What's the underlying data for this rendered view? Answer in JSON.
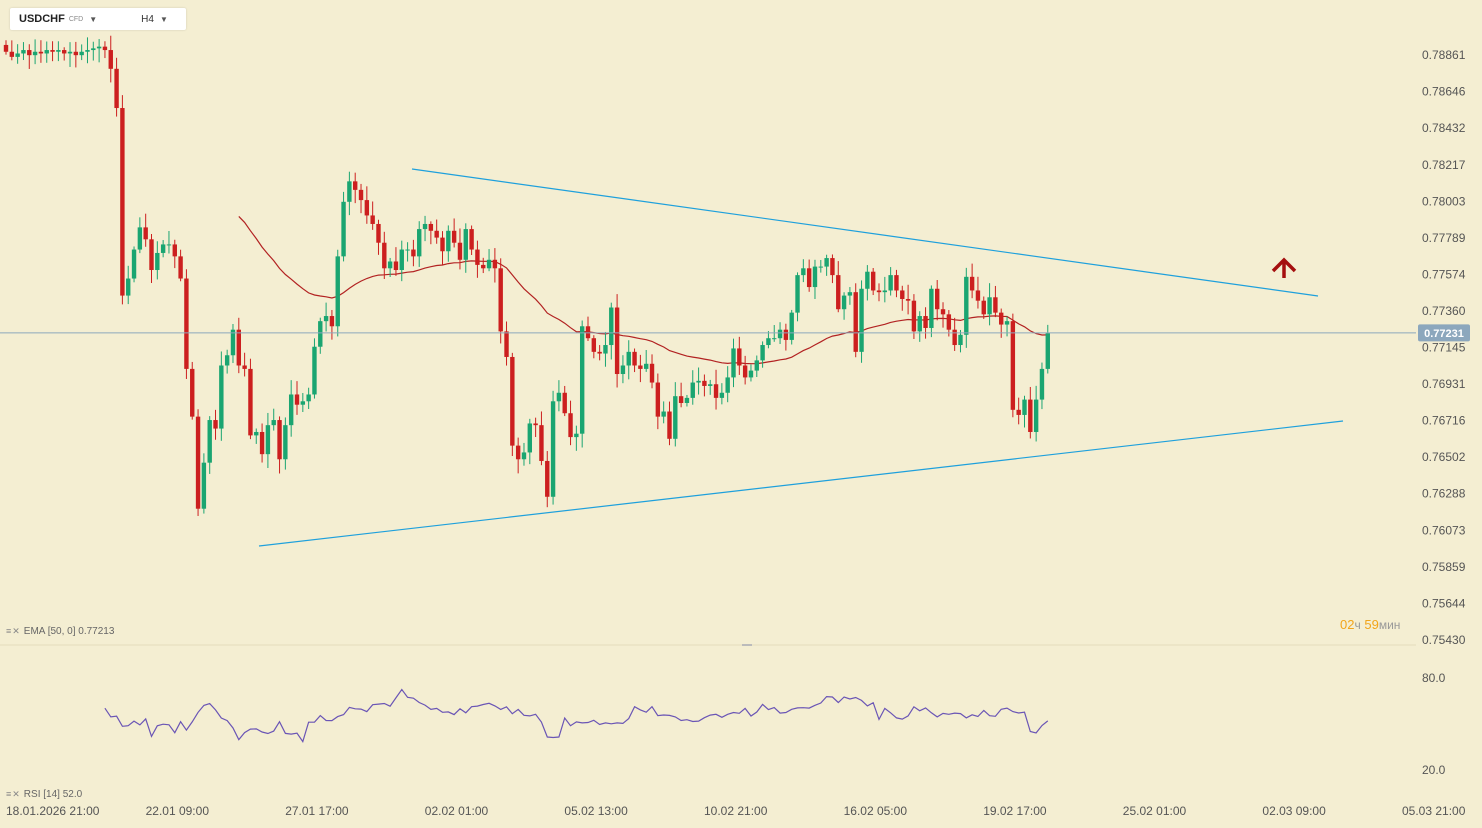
{
  "header": {
    "symbol": "USDCHF",
    "badge": "CFD",
    "timeframe": "H4"
  },
  "indicators": {
    "ema_label": "EMA [50, 0]",
    "ema_value": "0.77213",
    "rsi_label": "RSI [14]",
    "rsi_value": "52.0"
  },
  "timer": {
    "hours": "02",
    "hours_unit": "ч",
    "minutes": "59",
    "minutes_unit": "мин"
  },
  "colors": {
    "up": "#1aa571",
    "down": "#cc1f1f",
    "ema": "#b22222",
    "trend": "#1ea0dc",
    "rsi": "#6a55b5",
    "price_box": "#8ca7bd",
    "arrow": "#a50f0f",
    "timer": "#f2a51a"
  },
  "chart_data": [
    {
      "type": "candlestick",
      "symbol": "USDCHF",
      "timeframe": "H4",
      "current_price": 0.77231,
      "current_price_label": "0.77231",
      "y_ticks": [
        "0.78861",
        "0.78646",
        "0.78432",
        "0.78217",
        "0.78003",
        "0.77789",
        "0.77574",
        "0.77360",
        "0.77145",
        "0.76931",
        "0.76716",
        "0.76502",
        "0.76288",
        "0.76073",
        "0.75859",
        "0.75644",
        "0.75430"
      ],
      "x_ticks": [
        "18.01.2026  21:00",
        "22.01  09:00",
        "27.01  17:00",
        "02.02  01:00",
        "05.02  13:00",
        "10.02  21:00",
        "16.02  05:00",
        "19.02  17:00",
        "25.02  01:00",
        "02.03  09:00",
        "05.03  21:00"
      ],
      "closes": [
        0.7888,
        0.7885,
        0.7887,
        0.7889,
        0.7886,
        0.7888,
        0.7887,
        0.7889,
        0.7888,
        0.7889,
        0.7887,
        0.7888,
        0.7886,
        0.7888,
        0.7889,
        0.789,
        0.7891,
        0.7889,
        0.7878,
        0.7855,
        0.7745,
        0.7755,
        0.7772,
        0.7785,
        0.7778,
        0.776,
        0.777,
        0.7775,
        0.7775,
        0.7768,
        0.7755,
        0.7702,
        0.7674,
        0.762,
        0.7647,
        0.7672,
        0.7667,
        0.7704,
        0.771,
        0.7725,
        0.7704,
        0.7702,
        0.7663,
        0.7665,
        0.7652,
        0.7669,
        0.7672,
        0.7649,
        0.7669,
        0.7687,
        0.7681,
        0.7683,
        0.7687,
        0.7715,
        0.773,
        0.7733,
        0.7727,
        0.7768,
        0.78,
        0.7812,
        0.7807,
        0.7801,
        0.7792,
        0.7787,
        0.7776,
        0.7761,
        0.7765,
        0.776,
        0.7772,
        0.7772,
        0.7768,
        0.7784,
        0.7787,
        0.7783,
        0.7779,
        0.7771,
        0.7783,
        0.7776,
        0.7766,
        0.7784,
        0.7772,
        0.7763,
        0.7761,
        0.7766,
        0.7761,
        0.7724,
        0.7709,
        0.7657,
        0.7649,
        0.7653,
        0.767,
        0.7669,
        0.7648,
        0.7627,
        0.7683,
        0.7688,
        0.7676,
        0.7662,
        0.7664,
        0.7727,
        0.772,
        0.7712,
        0.7711,
        0.7716,
        0.7738,
        0.7699,
        0.7704,
        0.7712,
        0.7704,
        0.7702,
        0.7705,
        0.7694,
        0.7674,
        0.7677,
        0.7661,
        0.7686,
        0.7682,
        0.7685,
        0.7694,
        0.7695,
        0.7692,
        0.7693,
        0.7685,
        0.7688,
        0.7697,
        0.7714,
        0.7704,
        0.7697,
        0.7701,
        0.7707,
        0.7716,
        0.772,
        0.772,
        0.7725,
        0.7719,
        0.7735,
        0.7757,
        0.7761,
        0.775,
        0.7762,
        0.7762,
        0.7767,
        0.7757,
        0.7737,
        0.7745,
        0.7747,
        0.7712,
        0.7749,
        0.7759,
        0.7748,
        0.7747,
        0.7748,
        0.7757,
        0.7748,
        0.7743,
        0.7742,
        0.7724,
        0.7733,
        0.7726,
        0.7749,
        0.7737,
        0.7734,
        0.7725,
        0.7716,
        0.7722,
        0.7756,
        0.7748,
        0.7742,
        0.7734,
        0.7744,
        0.7735,
        0.7728,
        0.773,
        0.7678,
        0.7675,
        0.7684,
        0.7665,
        0.7684,
        0.7702,
        0.7723
      ]
    },
    {
      "type": "line",
      "name": "RSI [14]",
      "y_ticks": [
        "80.0",
        "20.0"
      ],
      "ylim": [
        0,
        100
      ],
      "values": [
        60.3,
        54.6,
        55.1,
        48.5,
        48.9,
        51.9,
        49.4,
        53.3,
        41.9,
        48.8,
        49.9,
        49.5,
        44.3,
        51.5,
        46.0,
        51.4,
        57.6,
        62.1,
        63.3,
        59.2,
        53.9,
        52.2,
        47.4,
        39.8,
        44.4,
        46.7,
        46.8,
        44.8,
        43.8,
        45.4,
        51.5,
        43.9,
        43.4,
        44.0,
        38.5,
        51.2,
        51.2,
        55.5,
        52.3,
        52.2,
        54.8,
        56.1,
        60.8,
        59.9,
        59.7,
        58.1,
        62.6,
        63.0,
        63.4,
        61.6,
        67.0,
        72.5,
        67.4,
        66.8,
        64.0,
        62.3,
        59.5,
        60.2,
        57.6,
        57.9,
        56.1,
        59.9,
        57.3,
        61.3,
        61.7,
        62.7,
        63.5,
        61.8,
        59.5,
        61.2,
        56.7,
        59.5,
        55.7,
        55.3,
        56.3,
        51.3,
        41.5,
        41.2,
        41.5,
        53.9,
        48.9,
        51.4,
        50.7,
        51.0,
        52.4,
        49.7,
        50.7,
        50.1,
        50.7,
        50.4,
        53.5,
        61.3,
        59.2,
        57.7,
        61.3,
        55.5,
        55.9,
        55.6,
        54.6,
        52.3,
        52.8,
        51.6,
        51.9,
        54.1,
        55.8,
        56.3,
        54.4,
        56.3,
        57.5,
        57.0,
        60.2,
        55.2,
        57.8,
        62.8,
        59.4,
        60.7,
        57.1,
        57.5,
        59.6,
        60.5,
        60.6,
        60.4,
        62.2,
        63.7,
        67.9,
        67.6,
        64.0,
        67.6,
        66.3,
        67.3,
        65.4,
        61.8,
        63.9,
        53.0,
        60.2,
        57.3,
        54.0,
        53.2,
        55.3,
        61.2,
        58.6,
        60.5,
        57.3,
        54.6,
        56.9,
        56.3,
        57.1,
        56.8,
        54.0,
        56.0,
        54.9,
        58.9,
        55.4,
        55.0,
        59.6,
        60.4,
        58.1,
        57.2,
        57.7,
        45.1,
        44.2,
        49.0,
        52.0
      ]
    }
  ]
}
